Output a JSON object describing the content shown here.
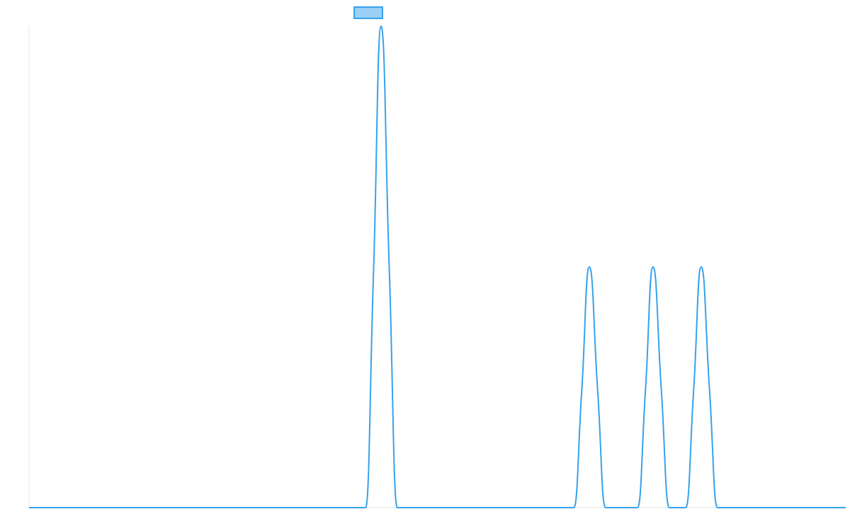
{
  "chart_data": {
    "type": "line",
    "title": "",
    "xlabel": "",
    "ylabel": "",
    "xlim": [
      0,
      1000
    ],
    "ylim": [
      0,
      1
    ],
    "grid": false,
    "legend": {
      "position": "top",
      "entries": [
        {
          "label": "",
          "color": "#36a2eb",
          "fill": "#9ad0f5"
        }
      ]
    },
    "series": [
      {
        "color": "#36a2eb",
        "points": [
          {
            "x": 0,
            "y": 0
          },
          {
            "x": 412,
            "y": 0
          },
          {
            "x": 422,
            "y": 0.5
          },
          {
            "x": 431,
            "y": 1.0
          },
          {
            "x": 441,
            "y": 0.5
          },
          {
            "x": 451,
            "y": 0
          },
          {
            "x": 667,
            "y": 0
          },
          {
            "x": 677,
            "y": 0.25
          },
          {
            "x": 686,
            "y": 0.5
          },
          {
            "x": 696,
            "y": 0.25
          },
          {
            "x": 706,
            "y": 0
          },
          {
            "x": 745,
            "y": 0
          },
          {
            "x": 755,
            "y": 0.25
          },
          {
            "x": 764,
            "y": 0.5
          },
          {
            "x": 774,
            "y": 0.25
          },
          {
            "x": 784,
            "y": 0
          },
          {
            "x": 804,
            "y": 0
          },
          {
            "x": 814,
            "y": 0.25
          },
          {
            "x": 823,
            "y": 0.5
          },
          {
            "x": 833,
            "y": 0.25
          },
          {
            "x": 843,
            "y": 0
          },
          {
            "x": 1000,
            "y": 0
          }
        ]
      }
    ]
  }
}
